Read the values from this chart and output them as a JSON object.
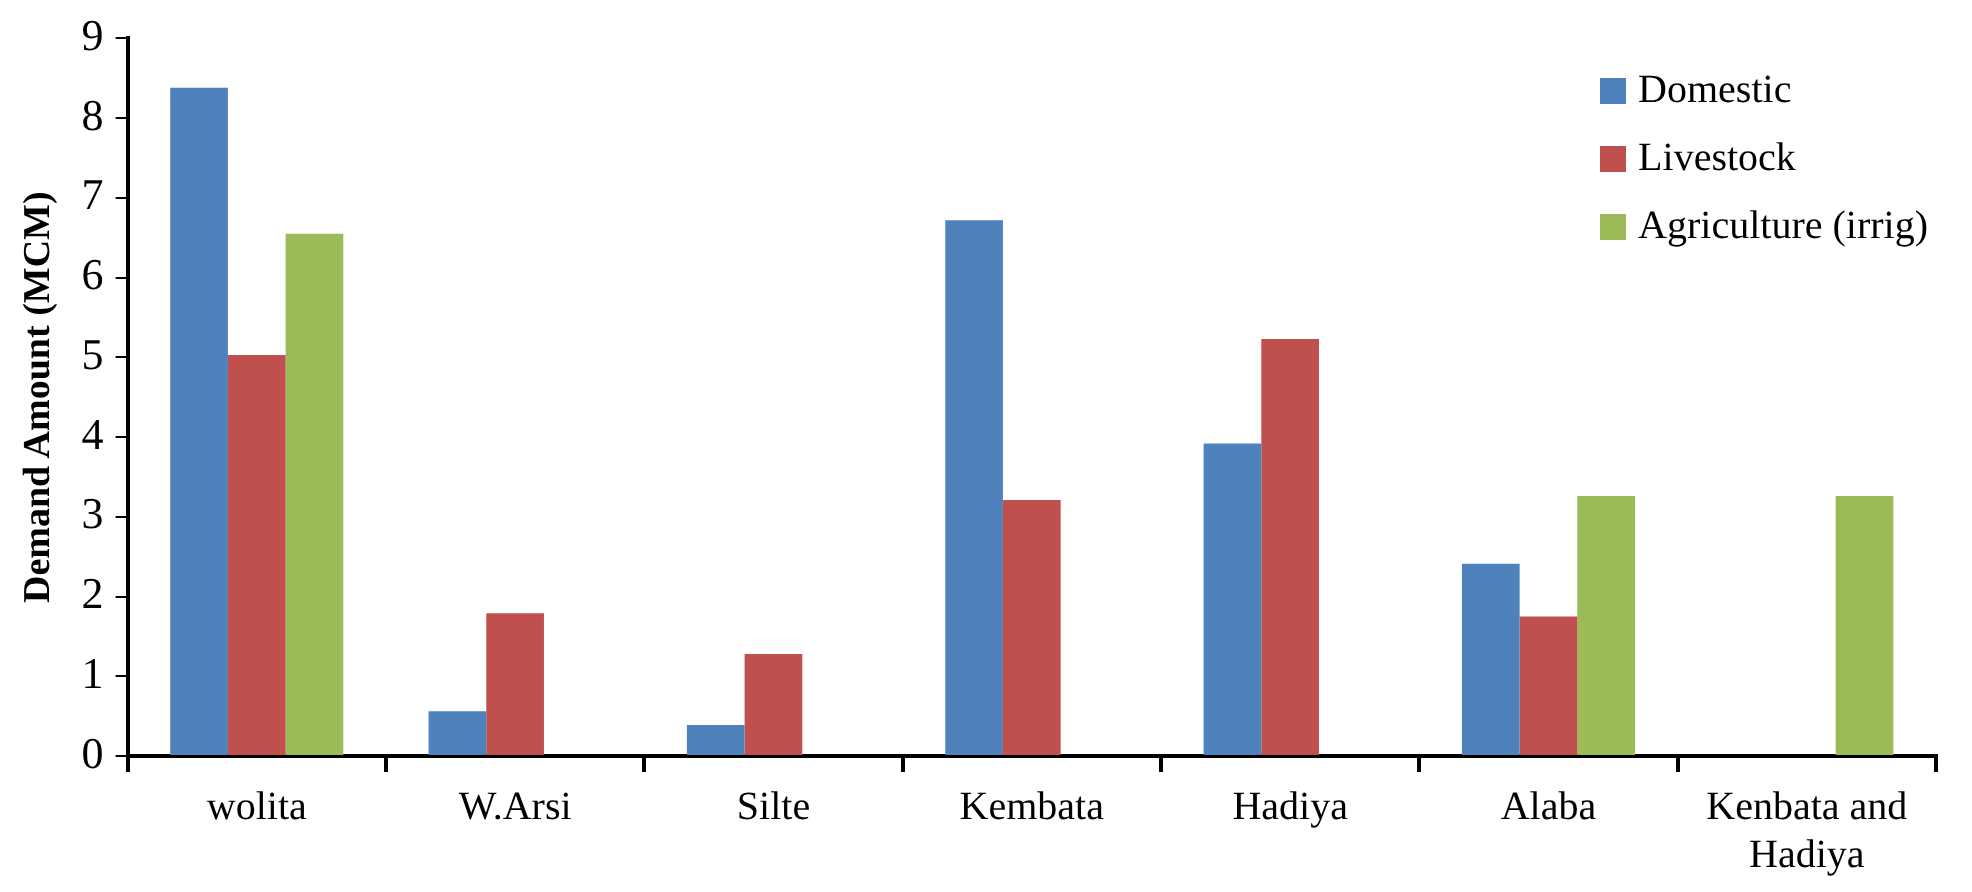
{
  "chart_data": {
    "type": "bar",
    "ylabel": "Demand Amount (MCM)",
    "categories": [
      "wolita",
      "W.Arsi",
      "Silte",
      "Kembata",
      "Hadiya",
      "Alaba",
      "Kenbata and Hadiya"
    ],
    "series": [
      {
        "name": "Domestic",
        "color": "#4f81bd",
        "values": [
          8.38,
          0.56,
          0.39,
          6.72,
          3.92,
          2.41,
          null
        ]
      },
      {
        "name": "Livestock",
        "color": "#c0504d",
        "values": [
          5.03,
          1.79,
          1.28,
          3.21,
          5.23,
          1.75,
          null
        ]
      },
      {
        "name": "Agriculture (irrig)",
        "color": "#9bbb59",
        "values": [
          6.55,
          null,
          null,
          null,
          null,
          3.26,
          3.26
        ]
      }
    ],
    "ylim": [
      0,
      9
    ],
    "yticks": [
      0,
      1,
      2,
      3,
      4,
      5,
      6,
      7,
      8,
      9
    ],
    "grid": false,
    "legend": "top right"
  }
}
